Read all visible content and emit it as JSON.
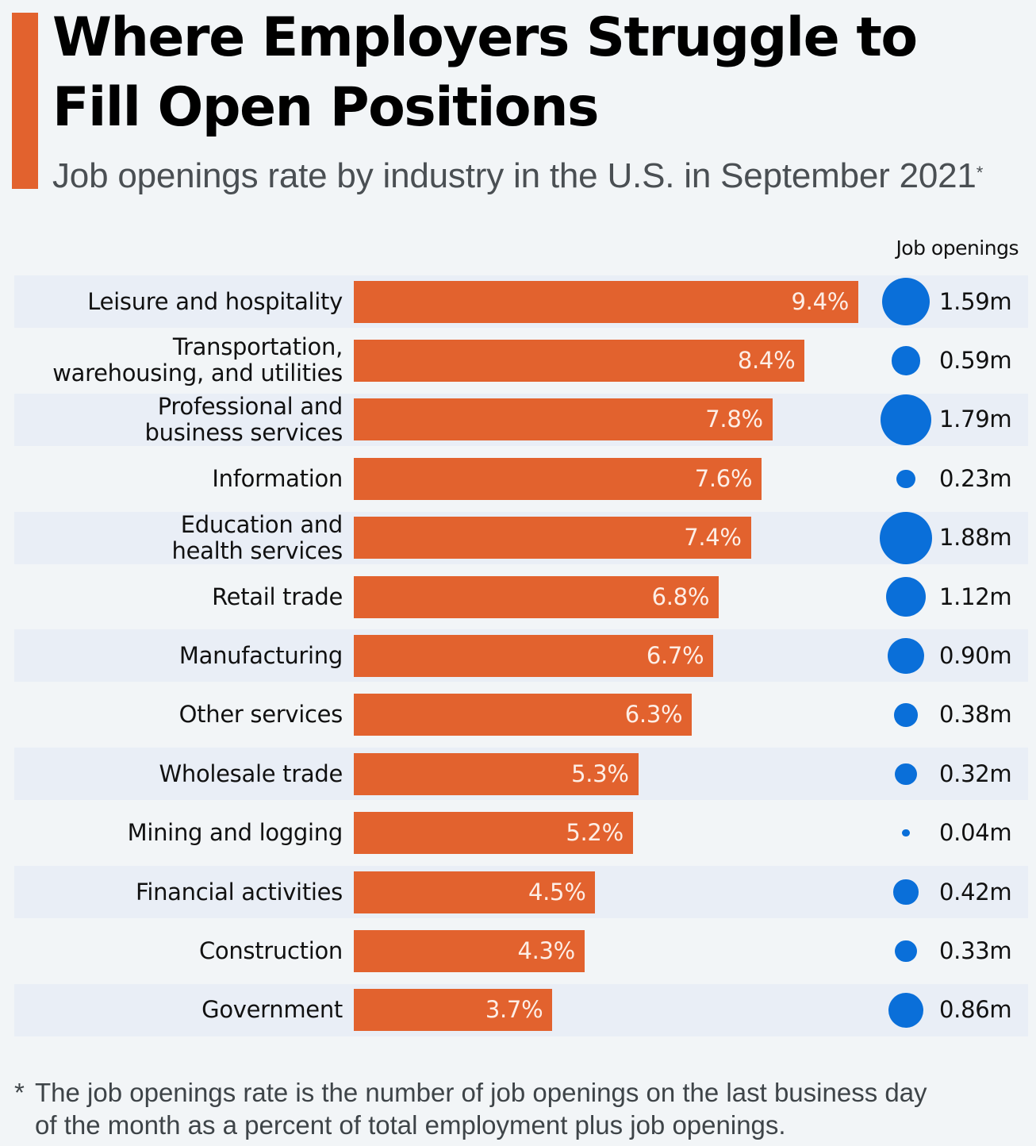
{
  "header": {
    "title": "Where Employers Struggle to Fill Open Positions",
    "subtitle": "Job openings rate by industry in the U.S. in September 2021",
    "subtitle_marker": "*"
  },
  "colors": {
    "accent": "#e2622e",
    "bar": "#e2622e",
    "bubble": "#0a6fd9",
    "band": "#e9eef6",
    "background": "#f2f5f7"
  },
  "footnote": {
    "marker": "*",
    "line1": "The job openings rate is the number of job openings on the last business day",
    "line2": "of the month as a percent of total employment plus job openings."
  },
  "chart_data": {
    "type": "bar",
    "orientation": "horizontal",
    "title": "Where Employers Struggle to Fill Open Positions",
    "subtitle": "Job openings rate by industry in the U.S. in September 2021*",
    "xlabel": "",
    "ylabel": "",
    "grid": false,
    "bubble_column_header": "Job openings",
    "categories": [
      [
        "Leisure and hospitality"
      ],
      [
        "Transportation,",
        "warehousing, and utilities"
      ],
      [
        "Professional and",
        "business services"
      ],
      [
        "Information"
      ],
      [
        "Education and",
        "health services"
      ],
      [
        "Retail trade"
      ],
      [
        "Manufacturing"
      ],
      [
        "Other services"
      ],
      [
        "Wholesale trade"
      ],
      [
        "Mining and logging"
      ],
      [
        "Financial activities"
      ],
      [
        "Construction"
      ],
      [
        "Government"
      ]
    ],
    "series": [
      {
        "name": "Job openings rate (%)",
        "values": [
          9.4,
          8.4,
          7.8,
          7.6,
          7.4,
          6.8,
          6.7,
          6.3,
          5.3,
          5.2,
          4.5,
          4.3,
          3.7
        ],
        "labels": [
          "9.4%",
          "8.4%",
          "7.8%",
          "7.6%",
          "7.4%",
          "6.8%",
          "6.7%",
          "6.3%",
          "5.3%",
          "5.2%",
          "4.5%",
          "4.3%",
          "3.7%"
        ]
      },
      {
        "name": "Job openings (millions)",
        "values": [
          1.59,
          0.59,
          1.79,
          0.23,
          1.88,
          1.12,
          0.9,
          0.38,
          0.32,
          0.04,
          0.42,
          0.33,
          0.86
        ],
        "labels": [
          "1.59m",
          "0.59m",
          "1.79m",
          "0.23m",
          "1.88m",
          "1.12m",
          "0.90m",
          "0.38m",
          "0.32m",
          "0.04m",
          "0.42m",
          "0.33m",
          "0.86m"
        ]
      }
    ],
    "xlim": [
      0,
      9.4
    ]
  }
}
